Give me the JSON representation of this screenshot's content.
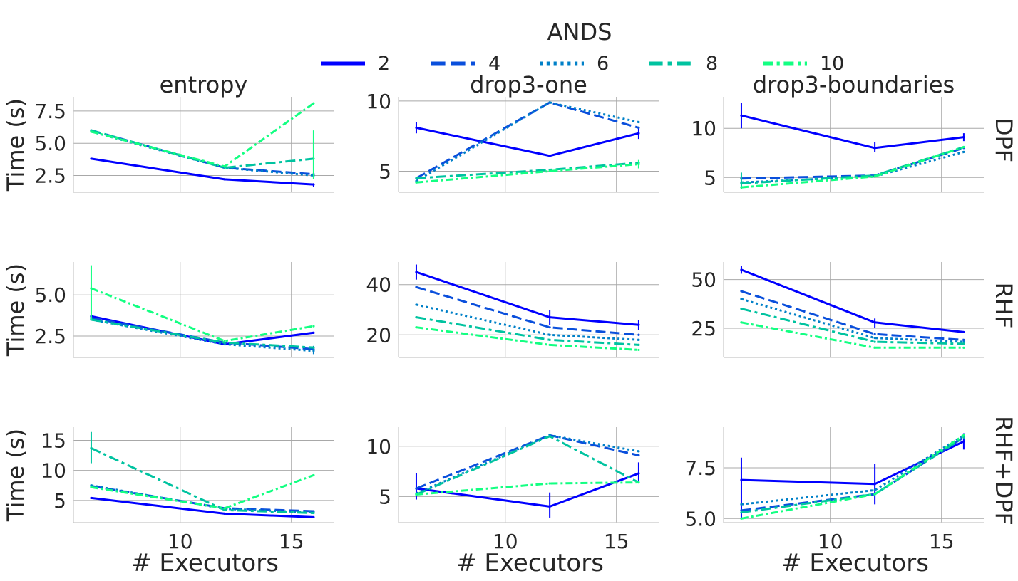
{
  "legend": {
    "title": "ANDS",
    "items": [
      {
        "label": "2",
        "color": "#0000ff",
        "dash": "solid"
      },
      {
        "label": "4",
        "color": "#0a4fdc",
        "dash": "dashed"
      },
      {
        "label": "6",
        "color": "#0080c8",
        "dash": "dotted"
      },
      {
        "label": "8",
        "color": "#00c3a0",
        "dash": "dashdot-long"
      },
      {
        "label": "10",
        "color": "#13ff82",
        "dash": "dashdot"
      }
    ]
  },
  "col_titles": [
    "entropy",
    "drop3-one",
    "drop3-boundaries"
  ],
  "row_titles": [
    "DPF",
    "RHF",
    "RHF+DPF"
  ],
  "ylabel": "Time (s)",
  "xlabel": "# Executors",
  "chart_data": [
    {
      "type": "line",
      "row": "DPF",
      "col": "entropy",
      "x": [
        6,
        12,
        16
      ],
      "xlim": [
        5.2,
        16.9
      ],
      "ylim": [
        1.2,
        8.6
      ],
      "yticks": [
        2.5,
        5.0,
        7.5
      ],
      "ytick_labels": [
        "2.5",
        "5.0",
        "7.5"
      ],
      "xticks": [
        10,
        15
      ],
      "xtick_labels": [],
      "series": [
        {
          "name": "2",
          "values": [
            3.8,
            2.2,
            1.8
          ],
          "err": [
            null,
            null,
            [
              1.6,
              1.9
            ]
          ]
        },
        {
          "name": "4",
          "values": [
            6.0,
            3.1,
            2.6
          ],
          "err": [
            null,
            null,
            null
          ]
        },
        {
          "name": "6",
          "values": [
            5.9,
            3.1,
            2.5
          ],
          "err": [
            null,
            null,
            null
          ]
        },
        {
          "name": "8",
          "values": [
            6.0,
            3.1,
            3.8
          ],
          "err": [
            null,
            null,
            null
          ]
        },
        {
          "name": "10",
          "values": [
            5.9,
            3.2,
            8.1
          ],
          "err": [
            null,
            null,
            [
              2.2,
              6.0
            ]
          ]
        }
      ]
    },
    {
      "type": "line",
      "row": "DPF",
      "col": "drop3-one",
      "x": [
        6,
        12,
        16
      ],
      "xlim": [
        5.2,
        16.9
      ],
      "ylim": [
        3.5,
        10.3
      ],
      "yticks": [
        5,
        10
      ],
      "ytick_labels": [
        "5",
        "10"
      ],
      "xticks": [
        10,
        15
      ],
      "xtick_labels": [],
      "series": [
        {
          "name": "2",
          "values": [
            8.1,
            6.1,
            7.7
          ],
          "err": [
            [
              7.7,
              8.5
            ],
            null,
            [
              7.3,
              8.1
            ]
          ]
        },
        {
          "name": "4",
          "values": [
            4.5,
            9.9,
            8.1
          ],
          "err": [
            null,
            null,
            null
          ]
        },
        {
          "name": "6",
          "values": [
            4.3,
            9.9,
            8.5
          ],
          "err": [
            null,
            null,
            null
          ]
        },
        {
          "name": "8",
          "values": [
            4.5,
            5.1,
            5.6
          ],
          "err": [
            null,
            null,
            null
          ]
        },
        {
          "name": "10",
          "values": [
            4.2,
            5.0,
            5.5
          ],
          "err": [
            null,
            null,
            [
              5.2,
              5.8
            ]
          ]
        }
      ]
    },
    {
      "type": "line",
      "row": "DPF",
      "col": "drop3-boundaries",
      "x": [
        6,
        12,
        16
      ],
      "xlim": [
        5.2,
        16.9
      ],
      "ylim": [
        3.5,
        13.2
      ],
      "yticks": [
        5,
        10
      ],
      "ytick_labels": [
        "5",
        "10"
      ],
      "xticks": [
        10,
        15
      ],
      "xtick_labels": [],
      "series": [
        {
          "name": "2",
          "values": [
            11.3,
            8.0,
            9.1
          ],
          "err": [
            [
              10.0,
              12.6
            ],
            [
              7.6,
              8.6
            ],
            [
              8.7,
              9.5
            ]
          ]
        },
        {
          "name": "4",
          "values": [
            4.9,
            5.2,
            8.0
          ],
          "err": [
            null,
            null,
            null
          ]
        },
        {
          "name": "6",
          "values": [
            4.5,
            5.1,
            7.6
          ],
          "err": [
            null,
            null,
            null
          ]
        },
        {
          "name": "8",
          "values": [
            4.4,
            5.2,
            8.1
          ],
          "err": [
            [
              3.8,
              5.5
            ],
            null,
            null
          ]
        },
        {
          "name": "10",
          "values": [
            4.0,
            5.1,
            8.1
          ],
          "err": [
            null,
            null,
            null
          ]
        }
      ]
    },
    {
      "type": "line",
      "row": "RHF",
      "col": "entropy",
      "x": [
        6,
        12,
        16
      ],
      "xlim": [
        5.2,
        16.9
      ],
      "ylim": [
        1.2,
        7.0
      ],
      "yticks": [
        2.5,
        5.0
      ],
      "ytick_labels": [
        "2.5",
        "5.0"
      ],
      "xticks": [
        10,
        15
      ],
      "xtick_labels": [],
      "series": [
        {
          "name": "2",
          "values": [
            3.7,
            2.0,
            2.7
          ],
          "err": [
            null,
            null,
            null
          ]
        },
        {
          "name": "4",
          "values": [
            3.6,
            2.1,
            1.7
          ],
          "err": [
            null,
            null,
            null
          ]
        },
        {
          "name": "6",
          "values": [
            3.5,
            2.0,
            1.6
          ],
          "err": [
            null,
            null,
            [
              1.4,
              1.9
            ]
          ]
        },
        {
          "name": "8",
          "values": [
            3.5,
            2.1,
            1.8
          ],
          "err": [
            null,
            null,
            null
          ]
        },
        {
          "name": "10",
          "values": [
            5.4,
            2.2,
            3.1
          ],
          "err": [
            [
              3.5,
              6.8
            ],
            null,
            null
          ]
        }
      ]
    },
    {
      "type": "line",
      "row": "RHF",
      "col": "drop3-one",
      "x": [
        6,
        12,
        16
      ],
      "xlim": [
        5.2,
        16.9
      ],
      "ylim": [
        11,
        49
      ],
      "yticks": [
        20,
        40
      ],
      "ytick_labels": [
        "20",
        "40"
      ],
      "xticks": [
        10,
        15
      ],
      "xtick_labels": [],
      "series": [
        {
          "name": "2",
          "values": [
            45,
            27,
            24
          ],
          "err": [
            [
              42,
              48
            ],
            [
              24,
              30
            ],
            [
              22,
              26
            ]
          ]
        },
        {
          "name": "4",
          "values": [
            39,
            23,
            20
          ],
          "err": [
            null,
            null,
            null
          ]
        },
        {
          "name": "6",
          "values": [
            32,
            20,
            18
          ],
          "err": [
            null,
            null,
            null
          ]
        },
        {
          "name": "8",
          "values": [
            27,
            18,
            16
          ],
          "err": [
            null,
            null,
            null
          ]
        },
        {
          "name": "10",
          "values": [
            23,
            16,
            14
          ],
          "err": [
            null,
            null,
            null
          ]
        }
      ]
    },
    {
      "type": "line",
      "row": "RHF",
      "col": "drop3-boundaries",
      "x": [
        6,
        12,
        16
      ],
      "xlim": [
        5.2,
        16.9
      ],
      "ylim": [
        10,
        59
      ],
      "yticks": [
        25,
        50
      ],
      "ytick_labels": [
        "25",
        "50"
      ],
      "xticks": [
        10,
        15
      ],
      "xtick_labels": [],
      "series": [
        {
          "name": "2",
          "values": [
            55,
            28,
            23
          ],
          "err": [
            [
              53,
              57
            ],
            [
              25,
              30
            ],
            null
          ]
        },
        {
          "name": "4",
          "values": [
            44,
            22,
            19
          ],
          "err": [
            null,
            null,
            null
          ]
        },
        {
          "name": "6",
          "values": [
            40,
            20,
            18
          ],
          "err": [
            null,
            null,
            null
          ]
        },
        {
          "name": "8",
          "values": [
            35,
            18,
            17
          ],
          "err": [
            null,
            null,
            null
          ]
        },
        {
          "name": "10",
          "values": [
            28,
            15,
            15
          ],
          "err": [
            null,
            null,
            null
          ]
        }
      ]
    },
    {
      "type": "line",
      "row": "RHF+DPF",
      "col": "entropy",
      "x": [
        6,
        12,
        16
      ],
      "xlim": [
        5.2,
        16.9
      ],
      "ylim": [
        1.3,
        17.2
      ],
      "yticks": [
        5,
        10,
        15
      ],
      "ytick_labels": [
        "5",
        "10",
        "15"
      ],
      "xticks": [
        10,
        15
      ],
      "xtick_labels": [
        "10",
        "15"
      ],
      "series": [
        {
          "name": "2",
          "values": [
            5.4,
            2.8,
            2.2
          ],
          "err": [
            null,
            null,
            null
          ]
        },
        {
          "name": "4",
          "values": [
            7.4,
            3.7,
            3.2
          ],
          "err": [
            null,
            null,
            null
          ]
        },
        {
          "name": "6",
          "values": [
            7.5,
            3.6,
            3.0
          ],
          "err": [
            null,
            null,
            null
          ]
        },
        {
          "name": "8",
          "values": [
            13.7,
            3.4,
            2.9
          ],
          "err": [
            [
              11.2,
              16.4
            ],
            null,
            null
          ]
        },
        {
          "name": "10",
          "values": [
            7.2,
            3.7,
            9.2
          ],
          "err": [
            null,
            null,
            null
          ]
        }
      ]
    },
    {
      "type": "line",
      "row": "RHF+DPF",
      "col": "drop3-one",
      "x": [
        6,
        12,
        16
      ],
      "xlim": [
        5.2,
        16.9
      ],
      "ylim": [
        2.4,
        11.9
      ],
      "yticks": [
        5,
        10
      ],
      "ytick_labels": [
        "5",
        "10"
      ],
      "xticks": [
        10,
        15
      ],
      "xtick_labels": [
        "10",
        "15"
      ],
      "series": [
        {
          "name": "2",
          "values": [
            5.8,
            4.0,
            7.3
          ],
          "err": [
            [
              4.7,
              7.3
            ],
            [
              2.9,
              5.4
            ],
            [
              6.3,
              8.4
            ]
          ]
        },
        {
          "name": "4",
          "values": [
            5.8,
            11.1,
            9.1
          ],
          "err": [
            null,
            null,
            null
          ]
        },
        {
          "name": "6",
          "values": [
            5.3,
            11.1,
            9.5
          ],
          "err": [
            null,
            null,
            null
          ]
        },
        {
          "name": "8",
          "values": [
            5.2,
            11.0,
            6.4
          ],
          "err": [
            null,
            null,
            null
          ]
        },
        {
          "name": "10",
          "values": [
            5.2,
            6.3,
            6.4
          ],
          "err": [
            null,
            null,
            null
          ]
        }
      ]
    },
    {
      "type": "line",
      "row": "RHF+DPF",
      "col": "drop3-boundaries",
      "x": [
        6,
        12,
        16
      ],
      "xlim": [
        5.2,
        16.9
      ],
      "ylim": [
        4.8,
        9.5
      ],
      "yticks": [
        5.0,
        7.5
      ],
      "ytick_labels": [
        "5.0",
        "7.5"
      ],
      "xticks": [
        10,
        15
      ],
      "xtick_labels": [
        "10",
        "15"
      ],
      "series": [
        {
          "name": "2",
          "values": [
            6.9,
            6.7,
            8.8
          ],
          "err": [
            [
              5.0,
              8.0
            ],
            [
              5.7,
              7.7
            ],
            [
              8.4,
              9.2
            ]
          ]
        },
        {
          "name": "4",
          "values": [
            5.4,
            6.2,
            9.0
          ],
          "err": [
            null,
            null,
            null
          ]
        },
        {
          "name": "6",
          "values": [
            5.7,
            6.4,
            9.1
          ],
          "err": [
            null,
            null,
            null
          ]
        },
        {
          "name": "8",
          "values": [
            5.3,
            6.2,
            9.0
          ],
          "err": [
            null,
            null,
            null
          ]
        },
        {
          "name": "10",
          "values": [
            5.0,
            6.2,
            9.1
          ],
          "err": [
            null,
            null,
            null
          ]
        }
      ]
    }
  ]
}
